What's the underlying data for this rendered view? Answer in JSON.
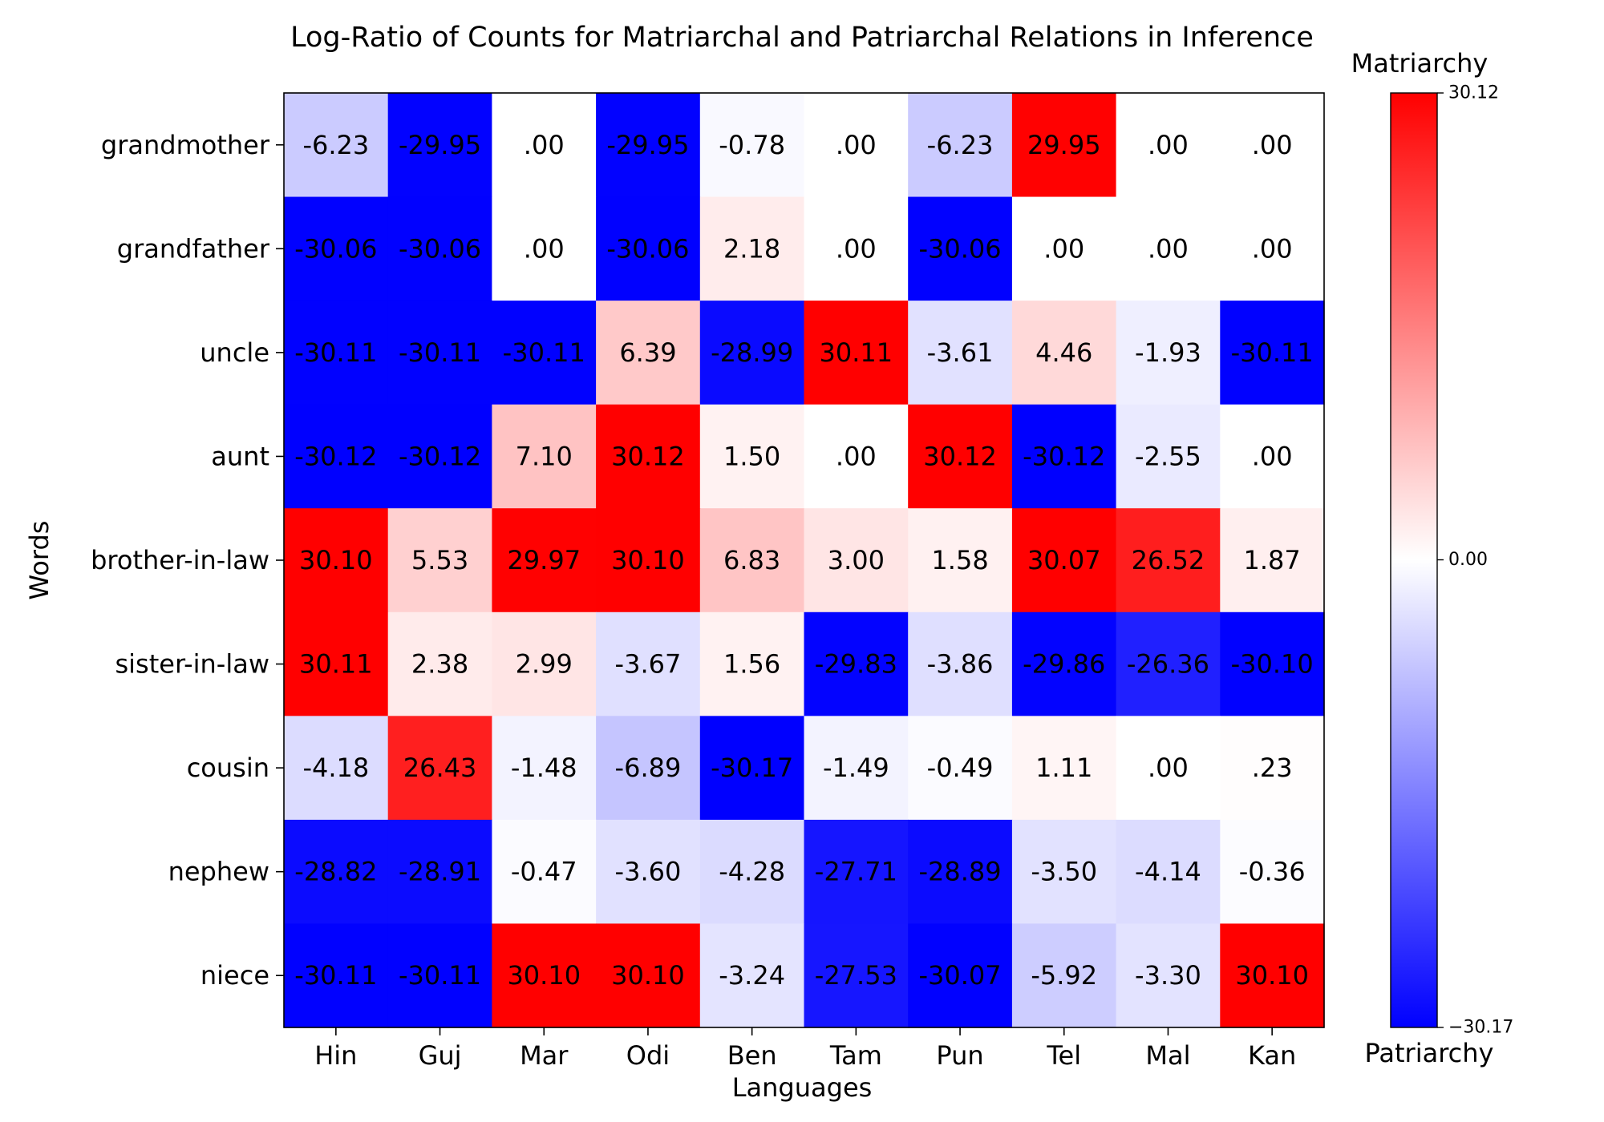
{
  "chart_data": {
    "type": "heatmap",
    "title": "Log-Ratio of Counts for Matriarchal and Patriarchal Relations in Inference",
    "xlabel": "Languages",
    "ylabel": "Words",
    "x_categories": [
      "Hin",
      "Guj",
      "Mar",
      "Odi",
      "Ben",
      "Tam",
      "Pun",
      "Tel",
      "Mal",
      "Kan"
    ],
    "y_categories": [
      "grandmother",
      "grandfather",
      "uncle",
      "aunt",
      "brother-in-law",
      "sister-in-law",
      "cousin",
      "nephew",
      "niece"
    ],
    "values": [
      [
        -6.23,
        -29.95,
        0.0,
        -29.95,
        -0.78,
        0.0,
        -6.23,
        29.95,
        0.0,
        0.0
      ],
      [
        -30.06,
        -30.06,
        0.0,
        -30.06,
        2.18,
        0.0,
        -30.06,
        0.0,
        0.0,
        0.0
      ],
      [
        -30.11,
        -30.11,
        -30.11,
        6.39,
        -28.99,
        30.11,
        -3.61,
        4.46,
        -1.93,
        -30.11
      ],
      [
        -30.12,
        -30.12,
        7.1,
        30.12,
        1.5,
        0.0,
        30.12,
        -30.12,
        -2.55,
        0.0
      ],
      [
        30.1,
        5.53,
        29.97,
        30.1,
        6.83,
        3.0,
        1.58,
        30.07,
        26.52,
        1.87
      ],
      [
        30.11,
        2.38,
        2.99,
        -3.67,
        1.56,
        -29.83,
        -3.86,
        -29.86,
        -26.36,
        -30.1
      ],
      [
        -4.18,
        26.43,
        -1.48,
        -6.89,
        -30.17,
        -1.49,
        -0.49,
        1.11,
        0.0,
        0.23
      ],
      [
        -28.82,
        -28.91,
        -0.47,
        -3.6,
        -4.28,
        -27.71,
        -28.89,
        -3.5,
        -4.14,
        -0.36
      ],
      [
        -30.11,
        -30.11,
        30.1,
        30.1,
        -3.24,
        -27.53,
        -30.07,
        -5.92,
        -3.3,
        30.1
      ]
    ],
    "cell_labels": [
      [
        "-6.23",
        "-29.95",
        ".00",
        "-29.95",
        "-0.78",
        ".00",
        "-6.23",
        "29.95",
        ".00",
        ".00"
      ],
      [
        "-30.06",
        "-30.06",
        ".00",
        "-30.06",
        "2.18",
        ".00",
        "-30.06",
        ".00",
        ".00",
        ".00"
      ],
      [
        "-30.11",
        "-30.11",
        "-30.11",
        "6.39",
        "-28.99",
        "30.11",
        "-3.61",
        "4.46",
        "-1.93",
        "-30.11"
      ],
      [
        "-30.12",
        "-30.12",
        "7.10",
        "30.12",
        "1.50",
        ".00",
        "30.12",
        "-30.12",
        "-2.55",
        ".00"
      ],
      [
        "30.10",
        "5.53",
        "29.97",
        "30.10",
        "6.83",
        "3.00",
        "1.58",
        "30.07",
        "26.52",
        "1.87"
      ],
      [
        "30.11",
        "2.38",
        "2.99",
        "-3.67",
        "1.56",
        "-29.83",
        "-3.86",
        "-29.86",
        "-26.36",
        "-30.10"
      ],
      [
        "-4.18",
        "26.43",
        "-1.48",
        "-6.89",
        "-30.17",
        "-1.49",
        "-0.49",
        "1.11",
        ".00",
        ".23"
      ],
      [
        "-28.82",
        "-28.91",
        "-0.47",
        "-3.60",
        "-4.28",
        "-27.71",
        "-28.89",
        "-3.50",
        "-4.14",
        "-0.36"
      ],
      [
        "-30.11",
        "-30.11",
        "30.10",
        "30.10",
        "-3.24",
        "-27.53",
        "-30.07",
        "-5.92",
        "-3.30",
        "30.10"
      ]
    ],
    "colormap": "bwr",
    "vmin": -30.17,
    "vmax": 30.12,
    "center": 0.0,
    "colors": {
      "low": "#0000ff",
      "mid": "#ffffff",
      "high": "#ff0000"
    },
    "colorbar": {
      "top_label": "Matriarchy",
      "bottom_label": "Patriarchy",
      "ticks": [
        {
          "value": 30.12,
          "label": "30.12"
        },
        {
          "value": 0.0,
          "label": "0.00"
        },
        {
          "value": -30.17,
          "label": "−30.17"
        }
      ]
    }
  }
}
